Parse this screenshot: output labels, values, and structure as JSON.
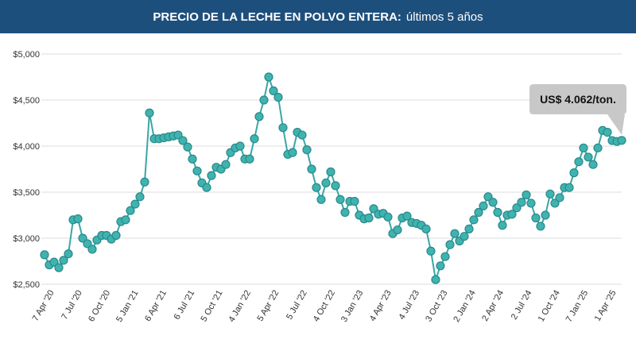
{
  "header": {
    "title_bold": "PRECIO DE LA LECHE EN POLVO ENTERA:",
    "title_normal": "últimos 5 años"
  },
  "colors": {
    "header_bg": "#1d4f7d",
    "series": "#3aa6a6",
    "marker_fill": "#3fb3b0",
    "grid": "#dddddd",
    "callout_bg": "#c8c8c8"
  },
  "chart_data": {
    "type": "line",
    "title": "PRECIO DE LA LECHE EN POLVO ENTERA: últimos 5 años",
    "xlabel": "",
    "ylabel": "",
    "ylim": [
      2500,
      5000
    ],
    "yticks": [
      2500,
      3000,
      3500,
      4000,
      4500,
      5000
    ],
    "ytick_labels": [
      "$2,500",
      "$3,000",
      "$3,500",
      "$4,000",
      "$4,500",
      "$5,000"
    ],
    "xtick_labels": [
      "7 Apr '20",
      "7 Jul '20",
      "6 Oct '20",
      "5 Jan '21",
      "6 Apr '21",
      "6 Jul '21",
      "5 Oct '21",
      "4 Jan '22",
      "5 Apr '22",
      "5 Jul '22",
      "4 Oct '22",
      "3 Jan '23",
      "4 Apr '23",
      "4 Jul '23",
      "3 Oct '23",
      "2 Jan '24",
      "2 Apr '24",
      "2 Jul '24",
      "1 Oct '24",
      "7 Jan '25",
      "1 Apr '25"
    ],
    "grid": true,
    "legend": "none",
    "series": [
      {
        "values": [
          2820,
          2710,
          2740,
          2680,
          2760,
          2830,
          3200,
          3210,
          3000,
          2940,
          2880,
          2980,
          3030,
          3030,
          2990,
          3030,
          3180,
          3200,
          3300,
          3370,
          3450,
          3610,
          4360,
          4080,
          4080,
          4090,
          4100,
          4110,
          4120,
          4060,
          3990,
          3860,
          3730,
          3600,
          3550,
          3680,
          3770,
          3750,
          3800,
          3930,
          3980,
          4000,
          3860,
          3860,
          4080,
          4320,
          4500,
          4750,
          4600,
          4530,
          4200,
          3910,
          3930,
          4150,
          4120,
          3960,
          3750,
          3550,
          3420,
          3600,
          3720,
          3570,
          3420,
          3280,
          3400,
          3400,
          3250,
          3210,
          3220,
          3320,
          3260,
          3270,
          3230,
          3050,
          3090,
          3220,
          3240,
          3170,
          3160,
          3140,
          3100,
          2860,
          2550,
          2700,
          2800,
          2930,
          3050,
          2970,
          3020,
          3100,
          3200,
          3280,
          3350,
          3450,
          3390,
          3280,
          3140,
          3250,
          3260,
          3330,
          3390,
          3470,
          3380,
          3220,
          3130,
          3250,
          3480,
          3380,
          3440,
          3550,
          3550,
          3710,
          3830,
          3980,
          3880,
          3800,
          3980,
          4170,
          4150,
          4060,
          4050,
          4062
        ]
      }
    ],
    "annotation": "US$ 4.062/ton."
  }
}
